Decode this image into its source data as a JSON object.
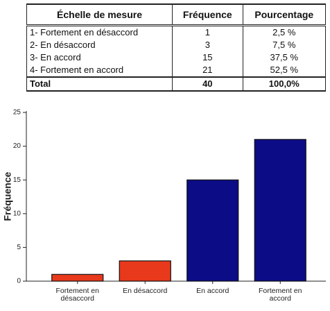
{
  "table": {
    "header": [
      "Échelle de mesure",
      "Fréquence",
      "Pourcentage"
    ],
    "rows": [
      [
        "1- Fortement en désaccord",
        "1",
        "2,5 %"
      ],
      [
        "2- En désaccord",
        "3",
        "7,5 %"
      ],
      [
        "3- En accord",
        "15",
        "37,5 %"
      ],
      [
        "4- Fortement en accord",
        "21",
        "52,5 %"
      ]
    ],
    "total": [
      "Total",
      "40",
      "100,0%"
    ]
  },
  "chart_data": {
    "type": "bar",
    "y_label": "Fréquence",
    "categories": [
      "Fortement en désaccord",
      "En désaccord",
      "En accord",
      "Fortement en accord"
    ],
    "values": [
      1,
      3,
      15,
      21
    ],
    "colors": [
      "#e8391c",
      "#e8391c",
      "#0c0c86",
      "#0c0c86"
    ],
    "ylim": [
      0,
      25
    ],
    "yticks": [
      0,
      5,
      10,
      15,
      20,
      25
    ],
    "grid": false
  }
}
